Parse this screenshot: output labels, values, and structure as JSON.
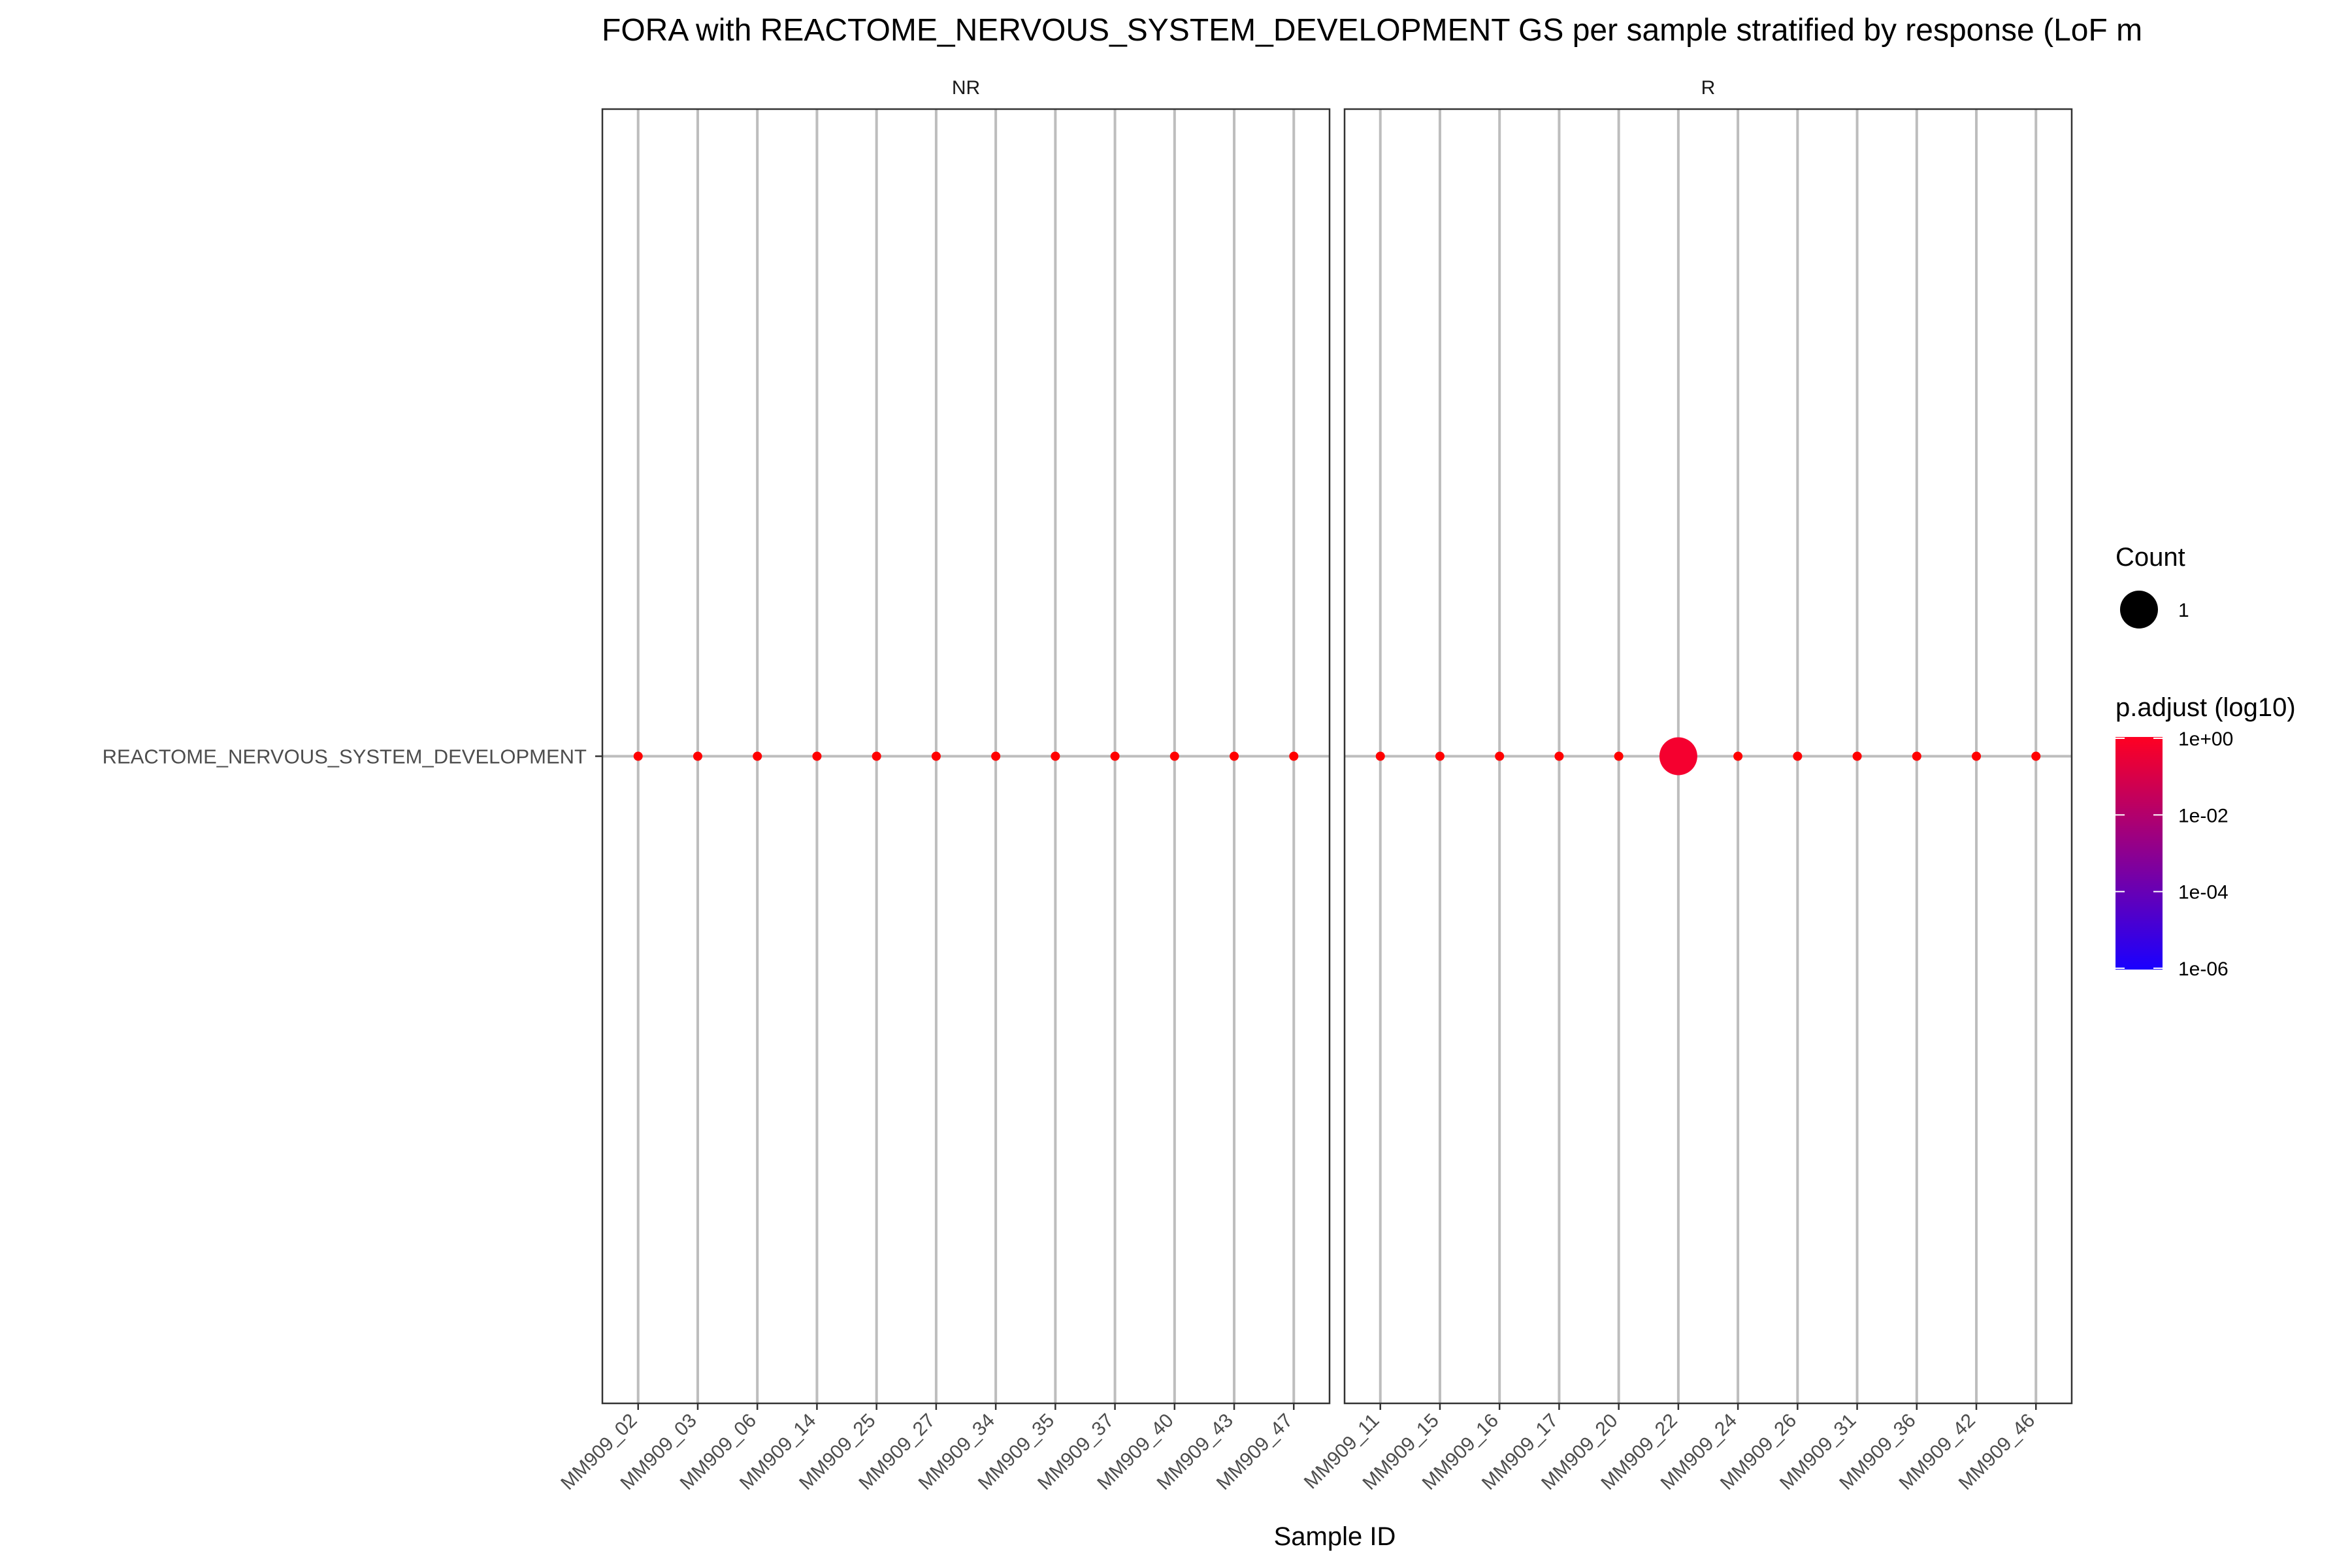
{
  "chart_data": {
    "type": "scatter",
    "title": "FORA with REACTOME_NERVOUS_SYSTEM_DEVELOPMENT GS per sample stratified by response (LoF m",
    "xlabel": "Sample ID",
    "ylabel": "",
    "y_categories": [
      "REACTOME_NERVOUS_SYSTEM_DEVELOPMENT"
    ],
    "grid": true,
    "legend_position": "right",
    "facets": [
      {
        "label": "NR",
        "samples": [
          "MM909_02",
          "MM909_03",
          "MM909_06",
          "MM909_14",
          "MM909_25",
          "MM909_27",
          "MM909_34",
          "MM909_35",
          "MM909_37",
          "MM909_40",
          "MM909_43",
          "MM909_47"
        ],
        "points": []
      },
      {
        "label": "R",
        "samples": [
          "MM909_11",
          "MM909_15",
          "MM909_16",
          "MM909_17",
          "MM909_20",
          "MM909_22",
          "MM909_24",
          "MM909_26",
          "MM909_31",
          "MM909_36",
          "MM909_42",
          "MM909_46"
        ],
        "points": [
          {
            "x": "MM909_22",
            "y": "REACTOME_NERVOUS_SYSTEM_DEVELOPMENT",
            "count": 1,
            "p_adjust": 1
          }
        ]
      }
    ],
    "legend": {
      "size_title": "Count",
      "size_labels": [
        "1"
      ],
      "color_title": "p.adjust (log10)",
      "color_ticks": [
        "1e+00",
        "1e-02",
        "1e-04",
        "1e-06"
      ],
      "color_low": "#1a00ff",
      "color_high": "#ff0022"
    },
    "colors": {
      "point_fill": "#f5002f",
      "marker_dot": "#ff0000",
      "gridline": "#bdbdbd",
      "panel_border": "#333333"
    }
  }
}
